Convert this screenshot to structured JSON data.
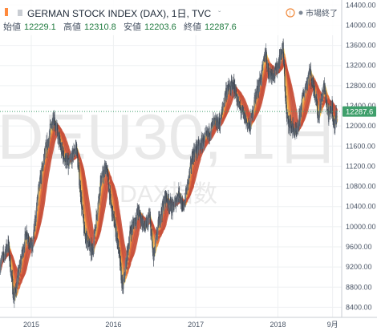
{
  "header": {
    "title": "GERMAN STOCK INDEX (DAX), 1日, TVC",
    "status": "市場終了",
    "ohlc": [
      {
        "label": "始値",
        "value": "12229.1"
      },
      {
        "label": "高値",
        "value": "12310.8"
      },
      {
        "label": "安値",
        "value": "12203.6"
      },
      {
        "label": "終値",
        "value": "12287.6"
      }
    ]
  },
  "watermark": {
    "line1": "DEU30, 1日",
    "line2": "DAX指数"
  },
  "last_price_label": "12287.6",
  "colors": {
    "up": "#26a69a",
    "down": "#e0504a",
    "candle": "#5a6270",
    "ribbon": [
      "#f6ec8c",
      "#f4c45a",
      "#ef9a45",
      "#e06a3a",
      "#c8503a"
    ],
    "last_price_bg": "#3f9f6b"
  },
  "chart_data": {
    "type": "candlestick",
    "title": "GERMAN STOCK INDEX (DAX), 1日, TVC",
    "ylim": [
      8200,
      14500
    ],
    "y_ticks": [
      8400,
      8800,
      9200,
      9600,
      10000,
      10400,
      10800,
      11200,
      11600,
      12000,
      12400,
      12800,
      13200,
      13600,
      14000,
      14400
    ],
    "x_ticks": [
      "2015",
      "2016",
      "2017",
      "2018",
      "9月"
    ],
    "x_tick_dates": [
      "2015-01-01",
      "2016-01-01",
      "2017-01-01",
      "2018-01-01",
      "2018-09-01"
    ],
    "x_range": [
      "2014-08-15",
      "2018-09-20"
    ],
    "last_value": 12287.6,
    "price_path": [
      [
        "2014-08-15",
        9250
      ],
      [
        "2014-09-20",
        9650
      ],
      [
        "2014-10-16",
        8550
      ],
      [
        "2014-11-15",
        9300
      ],
      [
        "2014-12-10",
        9900
      ],
      [
        "2015-01-05",
        9550
      ],
      [
        "2015-02-01",
        10700
      ],
      [
        "2015-03-01",
        11400
      ],
      [
        "2015-04-10",
        12200
      ],
      [
        "2015-05-15",
        11500
      ],
      [
        "2015-06-15",
        11200
      ],
      [
        "2015-07-20",
        11600
      ],
      [
        "2015-08-24",
        9900
      ],
      [
        "2015-09-28",
        9450
      ],
      [
        "2015-11-05",
        10900
      ],
      [
        "2015-12-01",
        11200
      ],
      [
        "2015-12-20",
        10450
      ],
      [
        "2016-01-20",
        9700
      ],
      [
        "2016-02-11",
        8750
      ],
      [
        "2016-03-15",
        9900
      ],
      [
        "2016-04-20",
        10300
      ],
      [
        "2016-05-20",
        9950
      ],
      [
        "2016-06-10",
        10200
      ],
      [
        "2016-06-27",
        9350
      ],
      [
        "2016-07-20",
        10100
      ],
      [
        "2016-08-20",
        10600
      ],
      [
        "2016-09-20",
        10350
      ],
      [
        "2016-10-20",
        10700
      ],
      [
        "2016-11-04",
        10300
      ],
      [
        "2016-12-20",
        11450
      ],
      [
        "2017-01-20",
        11600
      ],
      [
        "2017-02-28",
        11850
      ],
      [
        "2017-03-20",
        12050
      ],
      [
        "2017-04-18",
        12050
      ],
      [
        "2017-05-15",
        12700
      ],
      [
        "2017-06-20",
        12800
      ],
      [
        "2017-07-10",
        12400
      ],
      [
        "2017-08-29",
        11950
      ],
      [
        "2017-09-20",
        12550
      ],
      [
        "2017-10-20",
        13000
      ],
      [
        "2017-11-07",
        13500
      ],
      [
        "2017-11-20",
        13050
      ],
      [
        "2017-12-20",
        13050
      ],
      [
        "2018-01-23",
        13550
      ],
      [
        "2018-02-09",
        12150
      ],
      [
        "2018-03-26",
        11800
      ],
      [
        "2018-04-20",
        12550
      ],
      [
        "2018-05-22",
        13100
      ],
      [
        "2018-06-20",
        12550
      ],
      [
        "2018-06-28",
        12150
      ],
      [
        "2018-07-25",
        12800
      ],
      [
        "2018-08-15",
        12150
      ],
      [
        "2018-08-30",
        12400
      ],
      [
        "2018-09-07",
        11950
      ],
      [
        "2018-09-20",
        12287.6
      ]
    ]
  }
}
